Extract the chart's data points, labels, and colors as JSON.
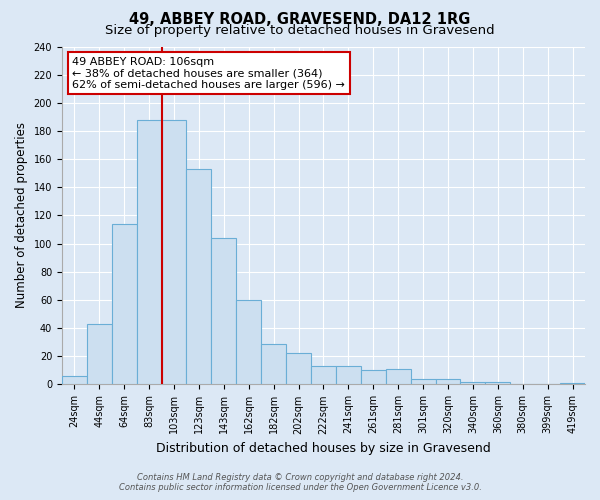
{
  "title": "49, ABBEY ROAD, GRAVESEND, DA12 1RG",
  "subtitle": "Size of property relative to detached houses in Gravesend",
  "xlabel": "Distribution of detached houses by size in Gravesend",
  "ylabel": "Number of detached properties",
  "bar_labels": [
    "24sqm",
    "44sqm",
    "64sqm",
    "83sqm",
    "103sqm",
    "123sqm",
    "143sqm",
    "162sqm",
    "182sqm",
    "202sqm",
    "222sqm",
    "241sqm",
    "261sqm",
    "281sqm",
    "301sqm",
    "320sqm",
    "340sqm",
    "360sqm",
    "380sqm",
    "399sqm",
    "419sqm"
  ],
  "bar_heights": [
    6,
    43,
    114,
    188,
    188,
    153,
    104,
    60,
    29,
    22,
    13,
    13,
    10,
    11,
    4,
    4,
    2,
    2,
    0,
    0,
    1
  ],
  "bar_color": "#ccdff0",
  "bar_edge_color": "#6aaed6",
  "vline_index": 4,
  "vline_color": "#cc0000",
  "annotation_title": "49 ABBEY ROAD: 106sqm",
  "annotation_line1": "← 38% of detached houses are smaller (364)",
  "annotation_line2": "62% of semi-detached houses are larger (596) →",
  "annotation_box_facecolor": "#ffffff",
  "annotation_box_edgecolor": "#cc0000",
  "ylim": [
    0,
    240
  ],
  "yticks": [
    0,
    20,
    40,
    60,
    80,
    100,
    120,
    140,
    160,
    180,
    200,
    220,
    240
  ],
  "grid_color": "#ffffff",
  "background_color": "#dce8f5",
  "plot_bg_color": "#dce8f5",
  "footer_line1": "Contains HM Land Registry data © Crown copyright and database right 2024.",
  "footer_line2": "Contains public sector information licensed under the Open Government Licence v3.0.",
  "title_fontsize": 10.5,
  "subtitle_fontsize": 9.5,
  "xlabel_fontsize": 9,
  "ylabel_fontsize": 8.5,
  "tick_fontsize": 7,
  "annotation_fontsize": 8,
  "footer_fontsize": 6
}
